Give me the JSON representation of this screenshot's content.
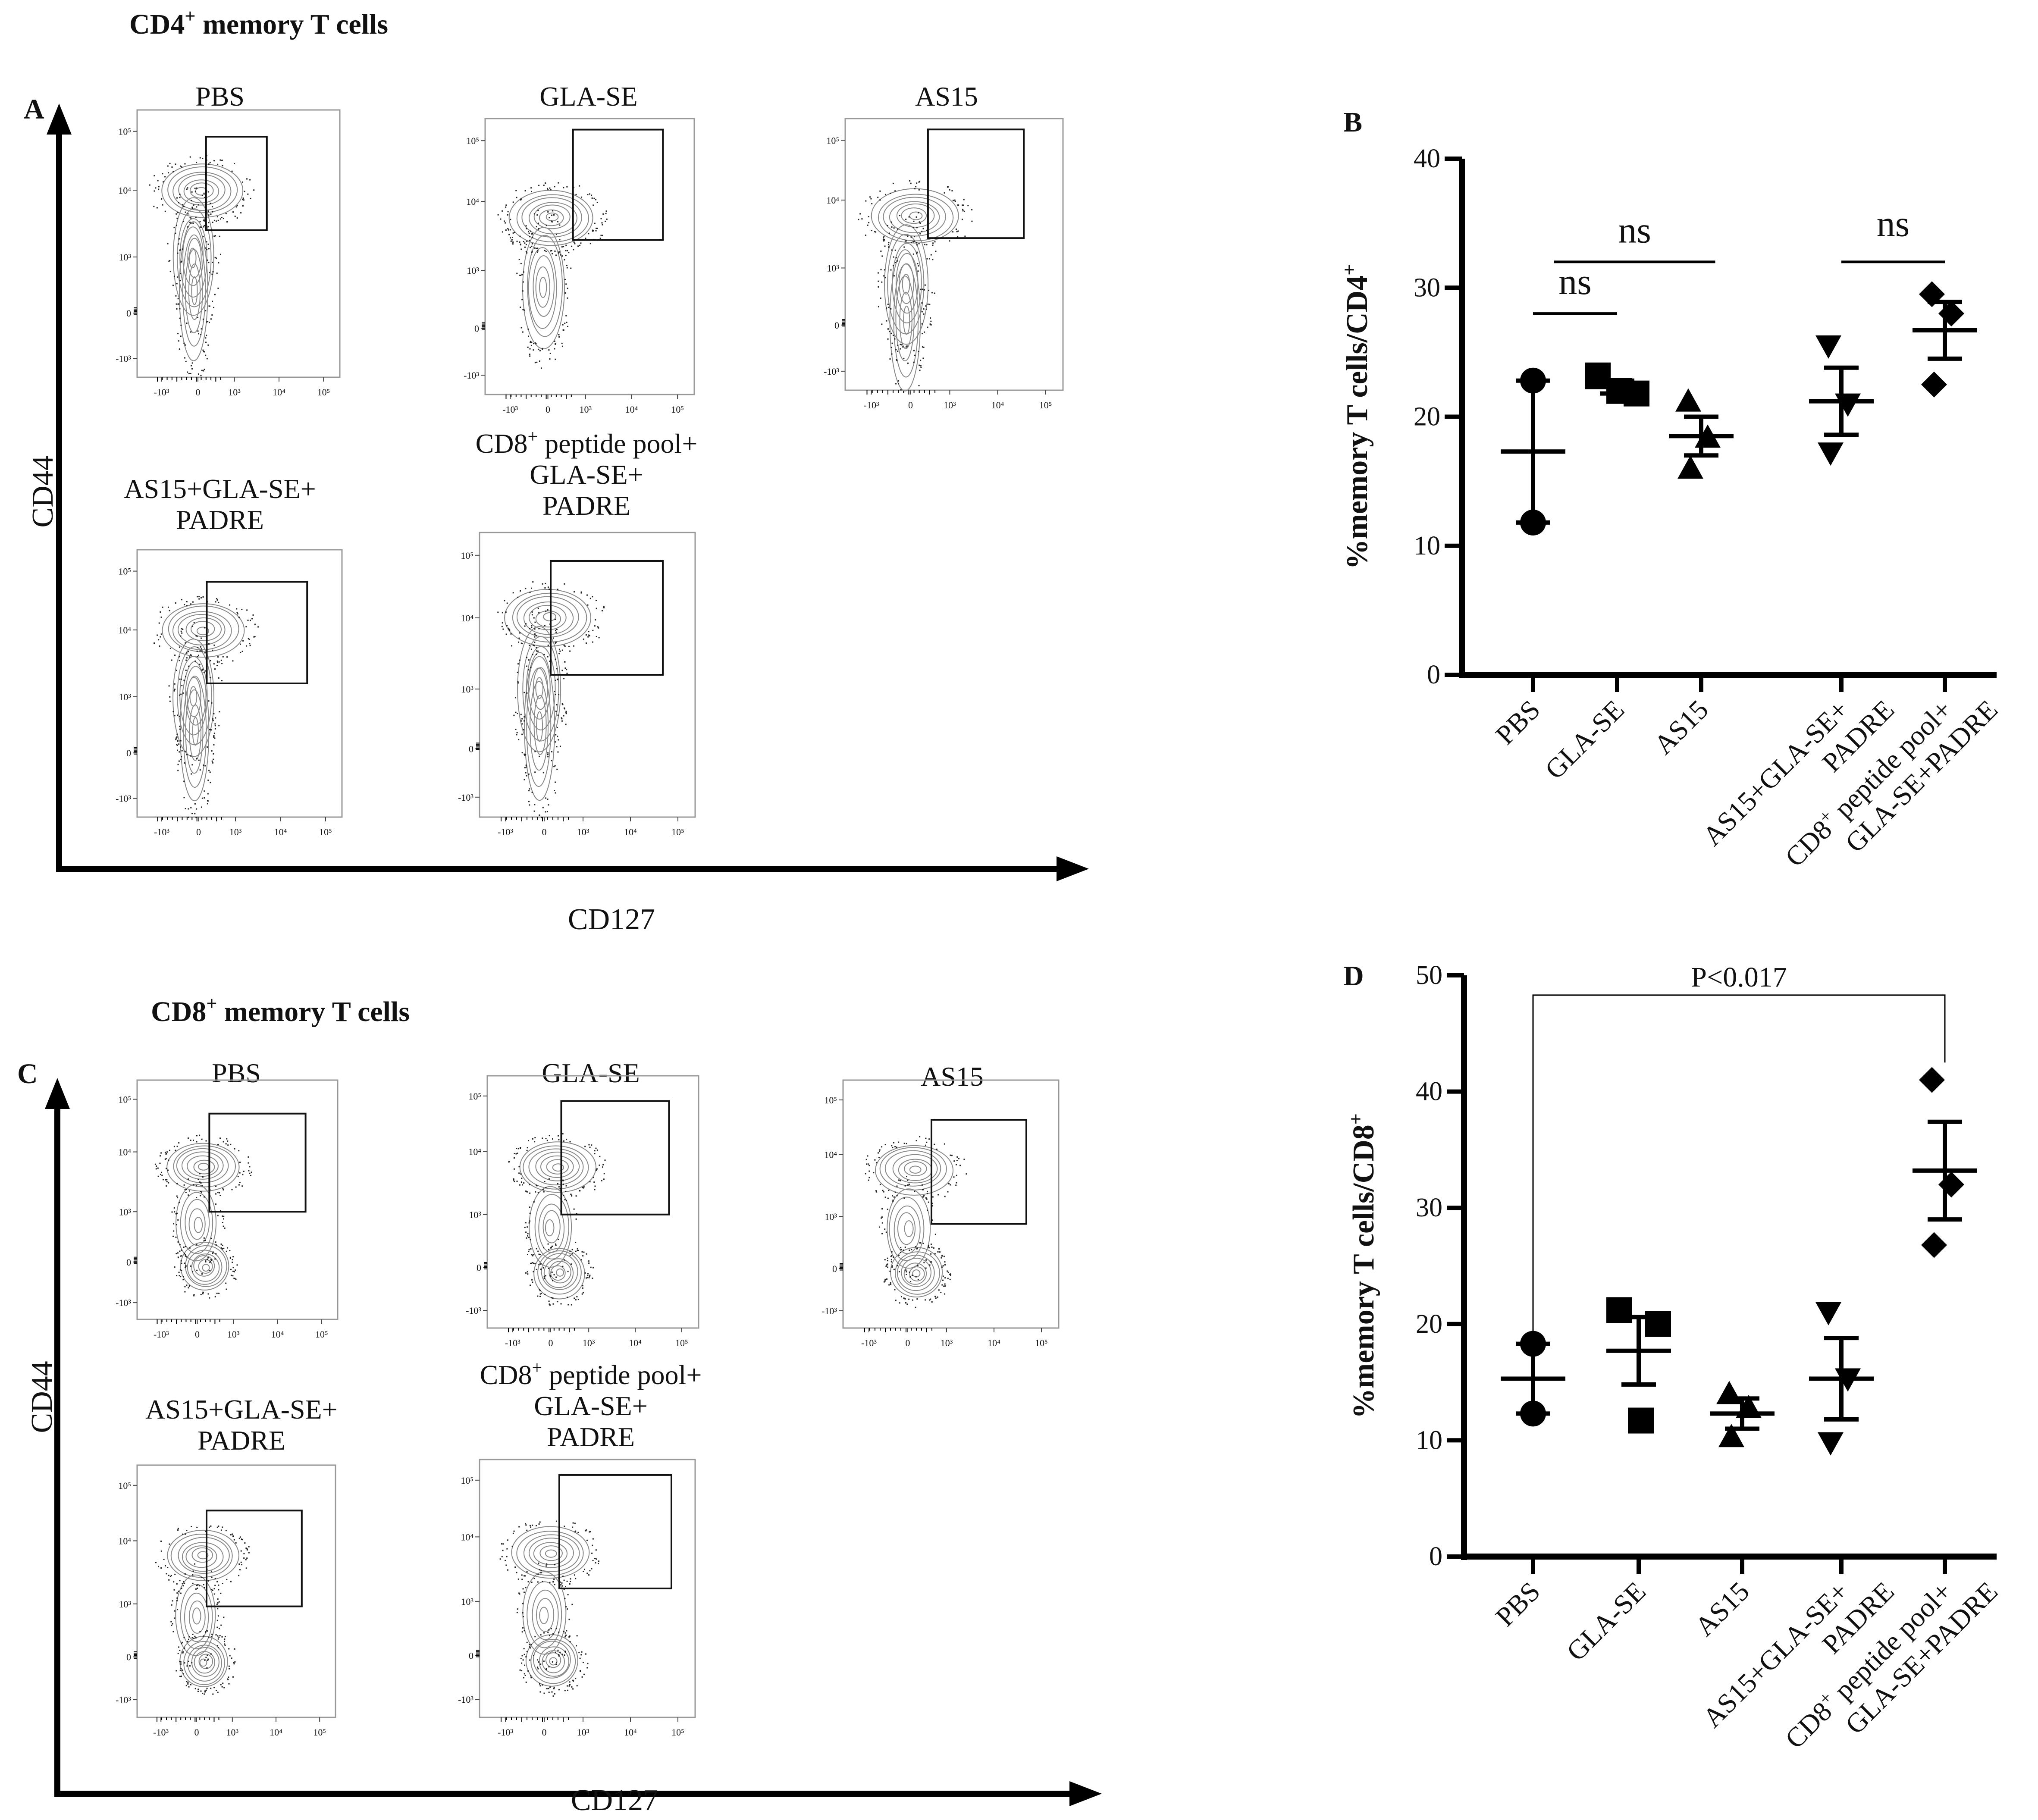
{
  "figure": {
    "sections": [
      {
        "key": "cd4",
        "title_main": "CD4",
        "title_sup": "+",
        "title_rest": " memory T cells",
        "panel_letter": "A",
        "y_axis": "CD44",
        "x_axis": "CD127"
      },
      {
        "key": "cd8",
        "title_main": "CD8",
        "title_sup": "+",
        "title_rest": " memory T cells",
        "panel_letter": "C",
        "y_axis": "CD44",
        "x_axis": "CD127"
      }
    ],
    "flow_plots": {
      "cd4": [
        {
          "label_lines": [
            "PBS"
          ]
        },
        {
          "label_lines": [
            "GLA-SE"
          ]
        },
        {
          "label_lines": [
            "AS15"
          ]
        },
        {
          "label_lines": [
            "AS15+GLA-SE+",
            "PADRE"
          ]
        },
        {
          "label_lines": [
            "CD8⁺ peptide pool+",
            "GLA-SE+",
            "PADRE"
          ]
        }
      ],
      "cd8": [
        {
          "label_lines": [
            "PBS"
          ]
        },
        {
          "label_lines": [
            "GLA-SE"
          ]
        },
        {
          "label_lines": [
            "AS15"
          ]
        },
        {
          "label_lines": [
            "AS15+GLA-SE+",
            "PADRE"
          ]
        },
        {
          "label_lines": [
            "CD8⁺ peptide pool+",
            "GLA-SE+",
            "PADRE"
          ]
        }
      ],
      "y_ticks": [
        "10⁵",
        "10⁴",
        "10³",
        "0",
        "-10³"
      ],
      "x_ticks": [
        "-10³",
        "0",
        "10³",
        "10⁴",
        "10⁵"
      ]
    }
  },
  "chart_data": [
    {
      "type": "scatter",
      "panel": "B",
      "ylabel_main": "%memory T cells/CD4",
      "ylabel_sup": "+",
      "ylim": [
        0,
        40
      ],
      "yticks": [
        0,
        10,
        20,
        30,
        40
      ],
      "categories": [
        "PBS",
        "GLA-SE",
        "AS15",
        "AS15+GLA-SE+\nPADRE",
        "CD8⁺ peptide pool+\nGLA-SE+PADRE"
      ],
      "series": [
        {
          "name": "PBS",
          "marker": "circle",
          "points": [
            22.8,
            11.8
          ],
          "mean": 17.3,
          "sem_low": 11.8,
          "sem_high": 22.8
        },
        {
          "name": "GLA-SE",
          "marker": "square",
          "points": [
            23.2,
            21.8,
            22.0
          ],
          "mean": 22.3,
          "sem_low": 21.8,
          "sem_high": 22.8
        },
        {
          "name": "AS15",
          "marker": "triangle-up",
          "points": [
            21.2,
            18.4,
            16.0
          ],
          "mean": 18.5,
          "sem_low": 17.0,
          "sem_high": 20.0
        },
        {
          "name": "AS15+GLA-SE+PADRE",
          "marker": "triangle-down",
          "points": [
            25.5,
            21.0,
            17.2
          ],
          "mean": 21.2,
          "sem_low": 18.6,
          "sem_high": 23.8
        },
        {
          "name": "CD8⁺ peptide pool+GLA-SE+PADRE",
          "marker": "diamond",
          "points": [
            29.5,
            28.0,
            22.5
          ],
          "mean": 26.7,
          "sem_low": 24.5,
          "sem_high": 28.9
        }
      ],
      "annotations": [
        {
          "text": "ns",
          "from": 0,
          "to": 1,
          "y": 28.0,
          "label_y": 29.5
        },
        {
          "text": "ns",
          "from": 0.25,
          "to": 2.1,
          "y": 32.0,
          "label_y": 33.5
        },
        {
          "text": "ns",
          "from": 3.0,
          "to": 4.0,
          "y": 32.0,
          "label_y": 34.0
        }
      ]
    },
    {
      "type": "scatter",
      "panel": "D",
      "ylabel_main": "%memory T cells/CD8",
      "ylabel_sup": "+",
      "ylim": [
        0,
        50
      ],
      "yticks": [
        0,
        10,
        20,
        30,
        40,
        50
      ],
      "categories": [
        "PBS",
        "GLA-SE",
        "AS15",
        "AS15+GLA-SE+\nPADRE",
        "CD8⁺ peptide pool+\nGLA-SE+PADRE"
      ],
      "series": [
        {
          "name": "PBS",
          "marker": "circle",
          "points": [
            18.3,
            12.3
          ],
          "mean": 15.3,
          "sem_low": 12.3,
          "sem_high": 18.3
        },
        {
          "name": "GLA-SE",
          "marker": "square",
          "points": [
            21.2,
            20.0,
            11.7
          ],
          "mean": 17.7,
          "sem_low": 14.8,
          "sem_high": 20.6
        },
        {
          "name": "AS15",
          "marker": "triangle-up",
          "points": [
            14.0,
            12.8,
            10.3
          ],
          "mean": 12.3,
          "sem_low": 11.0,
          "sem_high": 13.6
        },
        {
          "name": "AS15+GLA-SE+PADRE",
          "marker": "triangle-down",
          "points": [
            21.0,
            15.3,
            9.8
          ],
          "mean": 15.3,
          "sem_low": 11.8,
          "sem_high": 18.8
        },
        {
          "name": "CD8⁺ peptide pool+GLA-SE+PADRE",
          "marker": "diamond",
          "points": [
            41.0,
            32.0,
            26.8
          ],
          "mean": 33.2,
          "sem_low": 29.0,
          "sem_high": 37.4
        }
      ],
      "annotations": [
        {
          "text": "P<0.017",
          "bracket": true,
          "from": 0,
          "to": 4,
          "y": 48.3,
          "label_y": 48.8,
          "drop_from": 17.8,
          "drop_to": 42.5
        }
      ]
    }
  ]
}
